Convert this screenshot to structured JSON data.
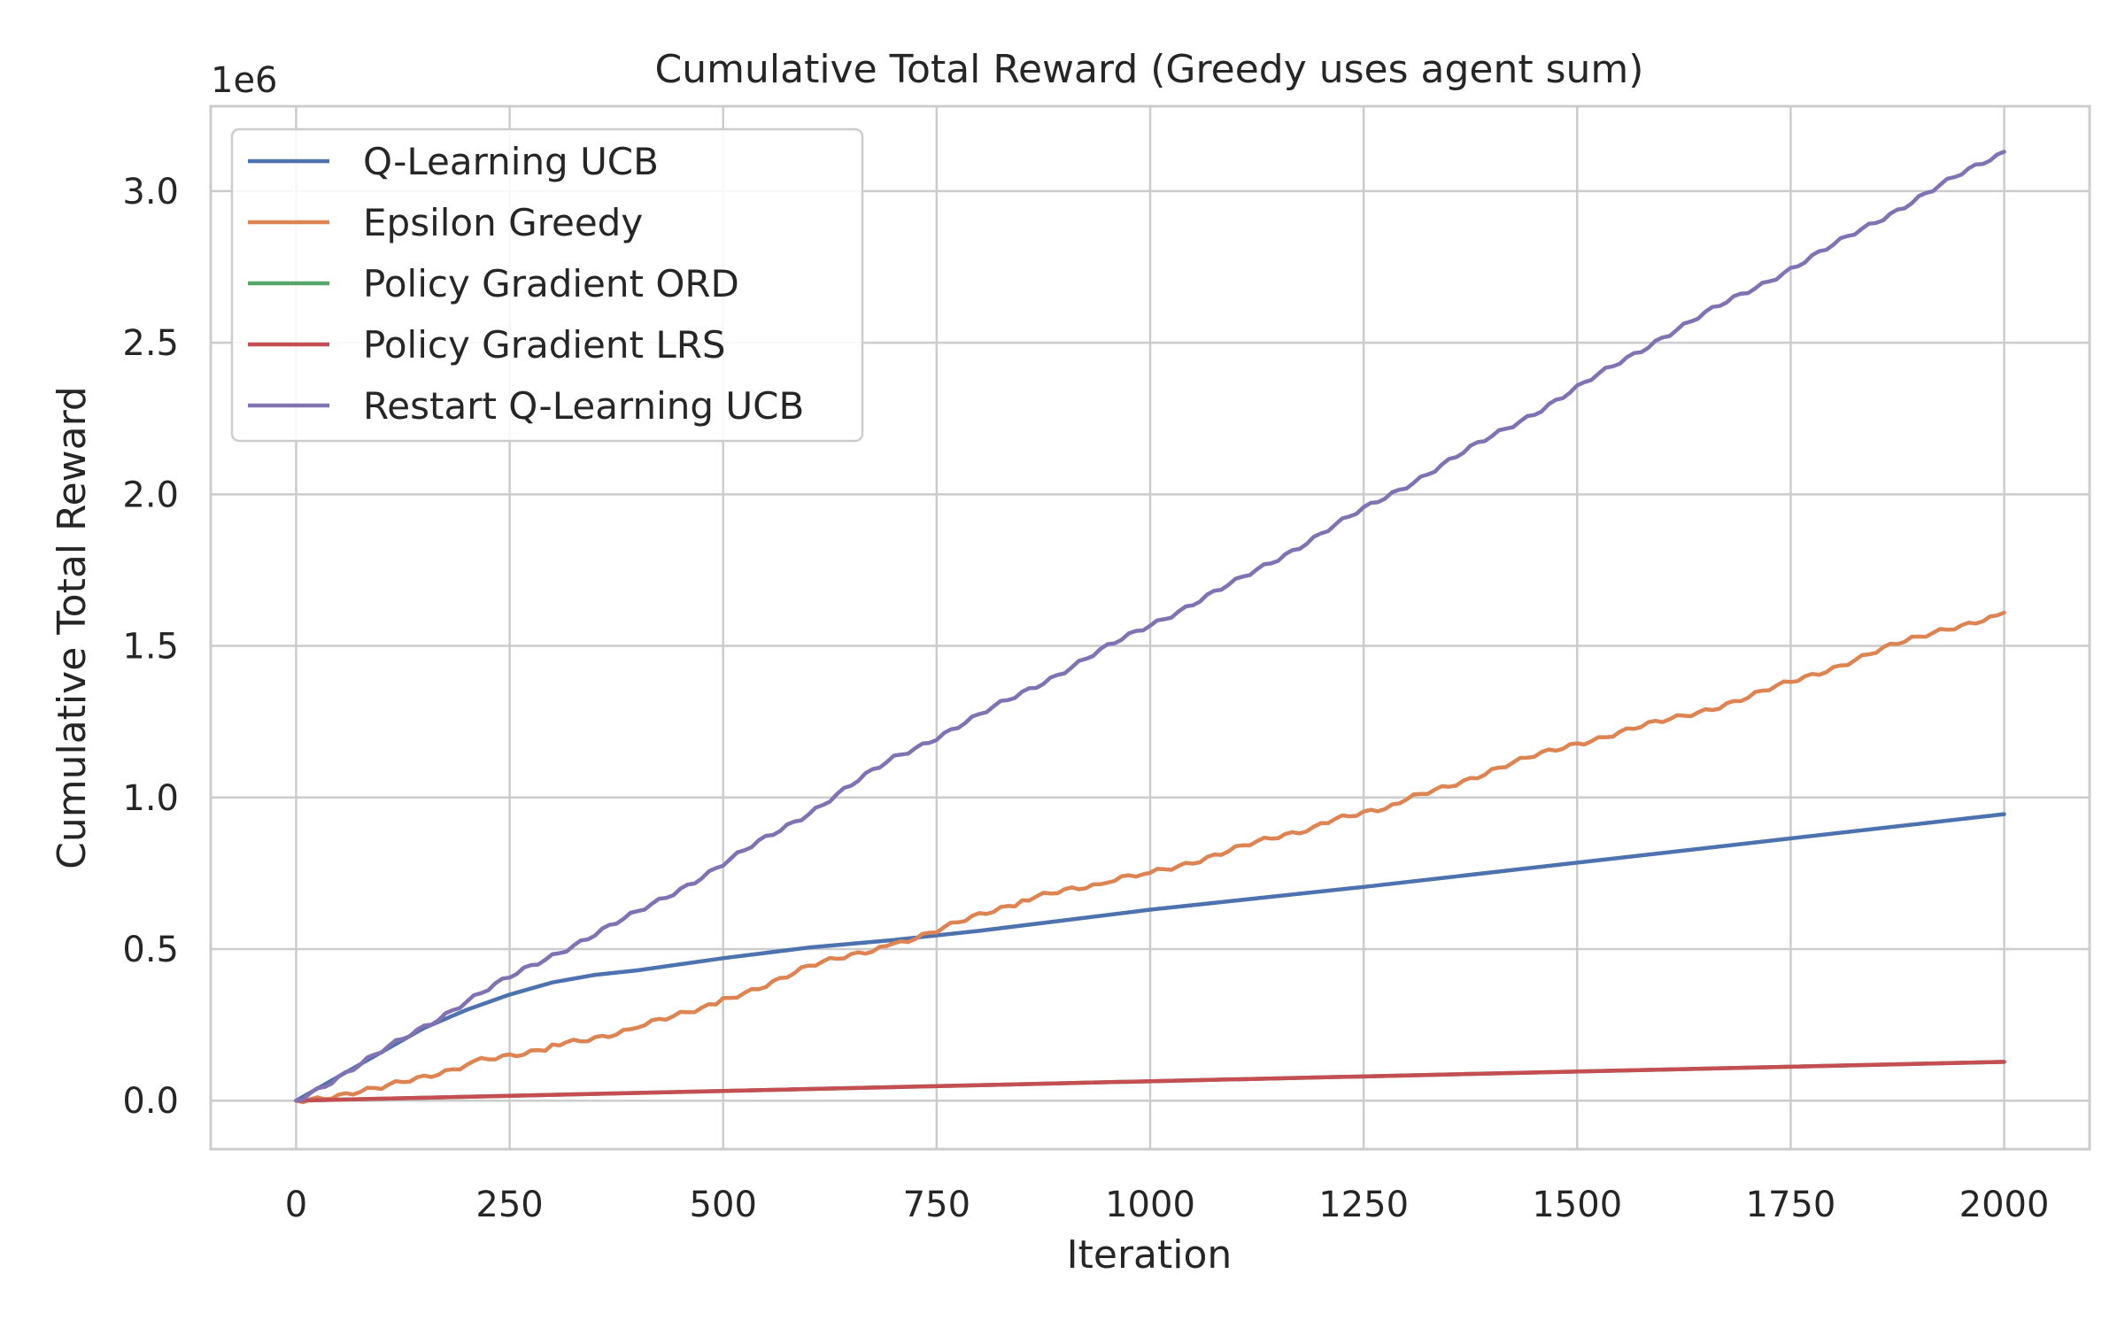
{
  "chart_data": {
    "type": "line",
    "title": "Cumulative Total Reward (Greedy uses agent sum)",
    "xlabel": "Iteration",
    "ylabel": "Cumulative Total Reward",
    "y_offset_label": "1e6",
    "xlim": [
      -100,
      2100
    ],
    "ylim": [
      -0.16,
      3.28
    ],
    "xticks": [
      0,
      250,
      500,
      750,
      1000,
      1250,
      1500,
      1750,
      2000
    ],
    "xtick_labels": [
      "0",
      "250",
      "500",
      "750",
      "1000",
      "1250",
      "1500",
      "1750",
      "2000"
    ],
    "yticks": [
      0.0,
      0.5,
      1.0,
      1.5,
      2.0,
      2.5,
      3.0
    ],
    "ytick_labels": [
      "0.0",
      "0.5",
      "1.0",
      "1.5",
      "2.0",
      "2.5",
      "3.0"
    ],
    "grid": true,
    "legend_position": "top-left",
    "series": [
      {
        "name": "Q-Learning UCB",
        "color": "#4c72b0",
        "x": [
          0,
          50,
          100,
          150,
          200,
          250,
          300,
          350,
          400,
          450,
          500,
          600,
          700,
          800,
          1000,
          1250,
          1500,
          1750,
          2000
        ],
        "y": [
          0,
          0.08,
          0.16,
          0.24,
          0.3,
          0.35,
          0.39,
          0.415,
          0.43,
          0.45,
          0.47,
          0.505,
          0.53,
          0.56,
          0.63,
          0.705,
          0.785,
          0.865,
          0.945
        ]
      },
      {
        "name": "Epsilon Greedy",
        "color": "#dd8452",
        "x": [
          0,
          100,
          200,
          250,
          300,
          400,
          450,
          500,
          600,
          700,
          750,
          800,
          850,
          950,
          1000,
          1100,
          1200,
          1250,
          1300,
          1400,
          1500,
          1600,
          1700,
          1800,
          1900,
          1950,
          2000
        ],
        "y": [
          0,
          0.04,
          0.12,
          0.15,
          0.18,
          0.24,
          0.29,
          0.33,
          0.44,
          0.52,
          0.56,
          0.61,
          0.66,
          0.72,
          0.75,
          0.83,
          0.91,
          0.95,
          0.99,
          1.09,
          1.18,
          1.25,
          1.33,
          1.43,
          1.53,
          1.56,
          1.61
        ]
      },
      {
        "name": "Policy Gradient ORD",
        "color": "#55a868",
        "x": [
          0,
          2000
        ],
        "y": [
          0,
          0.128
        ]
      },
      {
        "name": "Policy Gradient LRS",
        "color": "#c44e52",
        "x": [
          0,
          2000
        ],
        "y": [
          0,
          0.128
        ]
      },
      {
        "name": "Restart Q-Learning UCB",
        "color": "#8172b3",
        "x": [
          0,
          100,
          200,
          300,
          400,
          500,
          600,
          700,
          800,
          900,
          1000,
          1100,
          1200,
          1300,
          1400,
          1500,
          1600,
          1700,
          1800,
          1900,
          2000
        ],
        "y": [
          0,
          0.16,
          0.33,
          0.48,
          0.62,
          0.78,
          0.95,
          1.13,
          1.27,
          1.42,
          1.57,
          1.71,
          1.87,
          2.03,
          2.19,
          2.35,
          2.52,
          2.67,
          2.82,
          2.98,
          3.13
        ]
      }
    ]
  }
}
